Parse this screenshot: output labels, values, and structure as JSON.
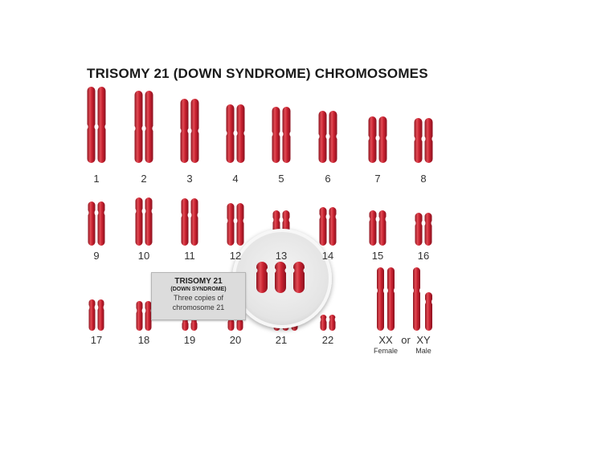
{
  "title": "TRISOMY 21 (DOWN SYNDROME) CHROMOSOMES",
  "colors": {
    "chromosome": "#c8202f",
    "chromosome_light": "#e24b54",
    "chromosome_dark": "#8f1420",
    "callout_bg": "#dcdcdc",
    "magnifier_bg": "#e6e6e6"
  },
  "pairs": [
    {
      "label": "1"
    },
    {
      "label": "2"
    },
    {
      "label": "3"
    },
    {
      "label": "4"
    },
    {
      "label": "5"
    },
    {
      "label": "6"
    },
    {
      "label": "7"
    },
    {
      "label": "8"
    },
    {
      "label": "9"
    },
    {
      "label": "10"
    },
    {
      "label": "11"
    },
    {
      "label": "12"
    },
    {
      "label": "13"
    },
    {
      "label": "14"
    },
    {
      "label": "15"
    },
    {
      "label": "16"
    },
    {
      "label": "17"
    },
    {
      "label": "18"
    },
    {
      "label": "19"
    },
    {
      "label": "20"
    },
    {
      "label": "21",
      "copies": 3
    },
    {
      "label": "22"
    }
  ],
  "sex_chromosomes": {
    "xx_label": "XX",
    "or_label": "or",
    "xy_label": "XY",
    "female_label": "Female",
    "male_label": "Male"
  },
  "callout": {
    "title": "TRISOMY 21",
    "subtitle": "(DOWN SYNDROME)",
    "line1": "Three copies of",
    "line2": "chromosome 21"
  }
}
